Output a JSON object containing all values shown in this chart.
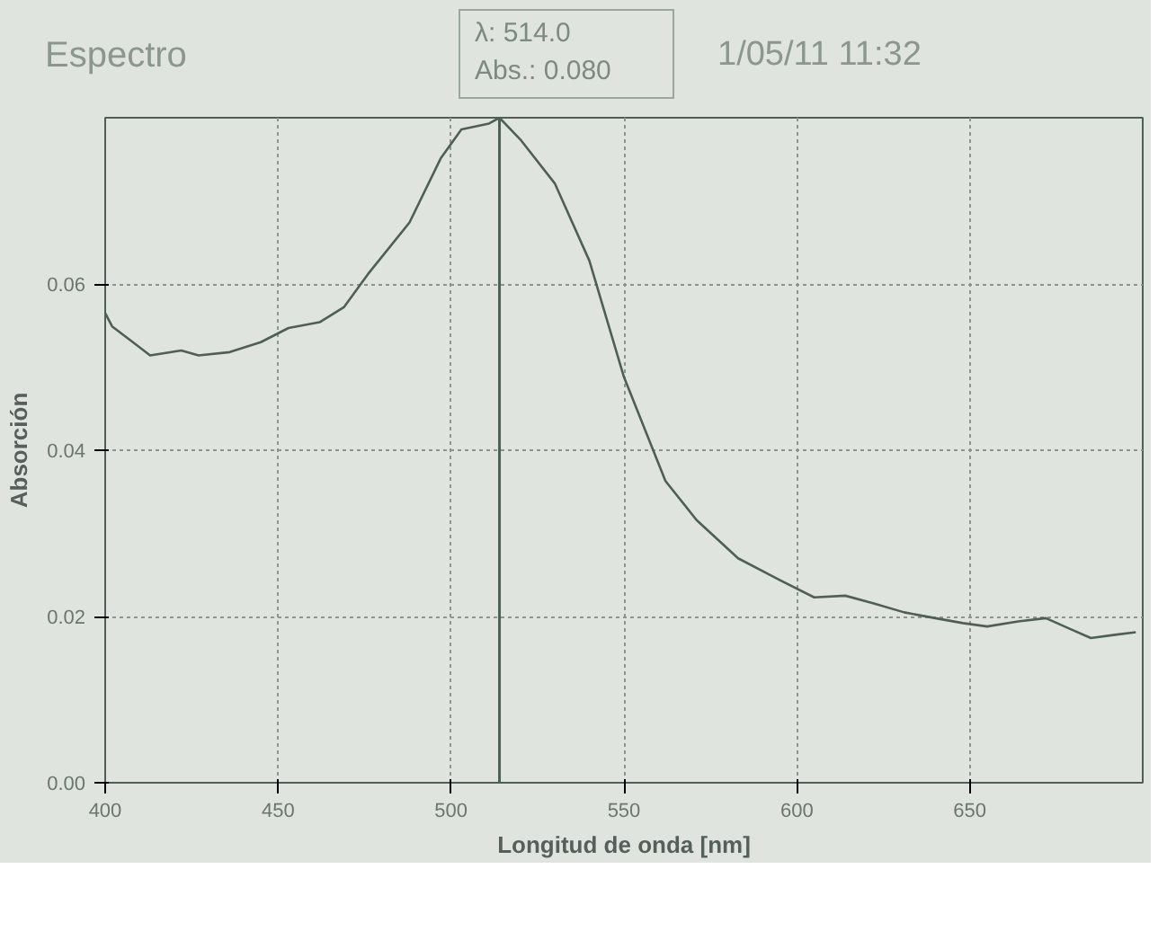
{
  "chart_data": {
    "type": "line",
    "title": "Espectro",
    "xlabel": "Longitud de onda [nm]",
    "ylabel": "Absorción",
    "annotations": [
      "λ:  514.0",
      "Abs.:  0.080",
      "1/05/11 11:32"
    ],
    "x": [
      400,
      402,
      408,
      413,
      422,
      427,
      436,
      445,
      453,
      462,
      469,
      476,
      488,
      497,
      503,
      511,
      514,
      520,
      530,
      540,
      550,
      562,
      571,
      583,
      595,
      605,
      614,
      622,
      631,
      640,
      648,
      655,
      664,
      672,
      679,
      685,
      692,
      698
    ],
    "series": [
      {
        "color": "#4f5f55",
        "values": [
          0.0565,
          0.0549,
          0.053,
          0.0514,
          0.052,
          0.0514,
          0.0518,
          0.053,
          0.0547,
          0.0554,
          0.0572,
          0.0612,
          0.0674,
          0.0751,
          0.0786,
          0.0793,
          0.08,
          0.0774,
          0.0721,
          0.0628,
          0.0488,
          0.0363,
          0.0316,
          0.027,
          0.0244,
          0.0223,
          0.0225,
          0.0216,
          0.0205,
          0.0198,
          0.0192,
          0.0188,
          0.0194,
          0.0198,
          0.0185,
          0.0174,
          0.0178,
          0.0181
        ]
      }
    ],
    "xlim": [
      400,
      700
    ],
    "ylim": [
      0,
      0.08
    ],
    "xticks": [
      400,
      450,
      500,
      550,
      600,
      650
    ],
    "yticks": [
      {
        "value": 0,
        "label": "0.00"
      },
      {
        "value": 0.02,
        "label": "0.02"
      },
      {
        "value": 0.04,
        "label": "0.04"
      },
      {
        "value": 0.06,
        "label": "0.06"
      }
    ],
    "ref_lines": [
      {
        "axis": "x",
        "value": 514,
        "color": "#4f5f55"
      }
    ],
    "grid": true,
    "line_style": "solid",
    "marker": "none"
  }
}
